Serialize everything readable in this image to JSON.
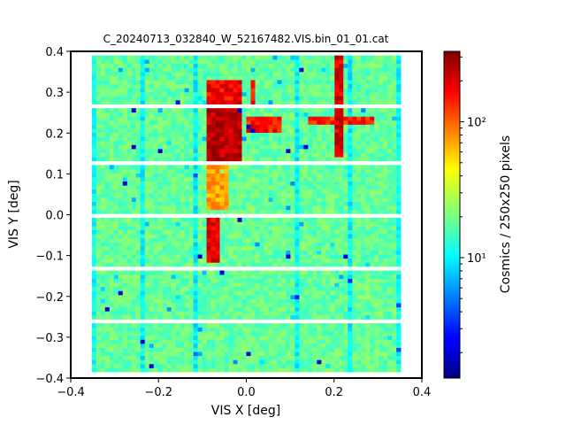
{
  "chart_data": {
    "type": "heatmap",
    "title": "C_20240713_032840_W_52167482.VIS.bin_01_01.cat",
    "xlabel": "VIS X [deg]",
    "ylabel": "VIS Y [deg]",
    "xlim": [
      -0.4,
      0.4
    ],
    "ylim": [
      -0.4,
      0.4
    ],
    "xticks": [
      -0.4,
      -0.2,
      0.0,
      0.2,
      0.4
    ],
    "xtick_labels": [
      "−0.4",
      "−0.2",
      "0.0",
      "0.2",
      "0.4"
    ],
    "yticks": [
      -0.4,
      -0.3,
      -0.2,
      -0.1,
      0.0,
      0.1,
      0.2,
      0.3,
      0.4
    ],
    "ytick_labels": [
      "−0.4",
      "−0.3",
      "−0.2",
      "−0.1",
      "0.0",
      "0.1",
      "0.2",
      "0.3",
      "0.4"
    ],
    "colorbar": {
      "label": "Cosmics / 250x250 pixels",
      "scale": "log",
      "range": [
        1.3,
        330
      ],
      "ticks": [
        10,
        100
      ],
      "tick_labels": [
        "10¹",
        "10²"
      ],
      "colormap": "jet"
    },
    "grid": false,
    "detector_layout": {
      "x_extent": [
        -0.352,
        0.352
      ],
      "y_extent": [
        -0.385,
        0.39
      ],
      "column_gaps_x": [
        -0.233,
        -0.117,
        0.0,
        0.117,
        0.233
      ],
      "row_gaps_y": [
        -0.263,
        -0.128,
        0.0,
        0.131,
        0.262
      ],
      "typical_count": 18
    },
    "hotspots": [
      {
        "x": [
          -0.09,
          -0.01
        ],
        "y": [
          0.27,
          0.33
        ],
        "level": 220
      },
      {
        "x": [
          -0.09,
          -0.01
        ],
        "y": [
          0.13,
          0.26
        ],
        "level": 300
      },
      {
        "x": [
          -0.09,
          -0.045
        ],
        "y": [
          0.01,
          0.13
        ],
        "level": 90
      },
      {
        "x": [
          -0.09,
          -0.06
        ],
        "y": [
          -0.12,
          -0.01
        ],
        "level": 230
      },
      {
        "x": [
          0.0,
          0.08
        ],
        "y": [
          0.2,
          0.24
        ],
        "level": 200
      },
      {
        "x": [
          0.14,
          0.29
        ],
        "y": [
          0.22,
          0.24
        ],
        "level": 180
      },
      {
        "x": [
          0.2,
          0.22
        ],
        "y": [
          0.14,
          0.39
        ],
        "level": 260
      },
      {
        "x": [
          0.015,
          0.025
        ],
        "y": [
          0.27,
          0.33
        ],
        "level": 200
      }
    ]
  }
}
